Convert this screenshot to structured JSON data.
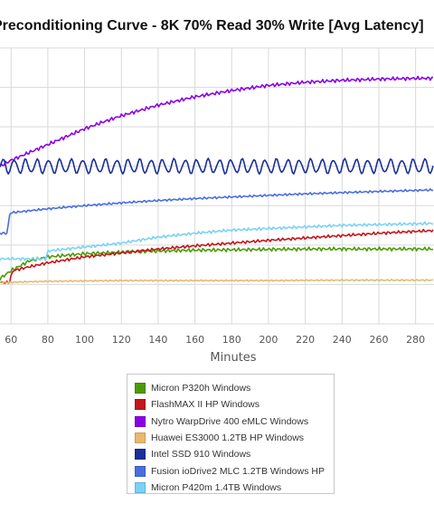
{
  "chart_data": {
    "type": "line",
    "title": "Preconditioning Curve - 8K 70% Read 30% Write [Avg Latency]",
    "xlabel": "Minutes",
    "x_ticks": [
      60,
      80,
      100,
      120,
      140,
      160,
      180,
      200,
      220,
      240,
      260,
      280
    ],
    "xlim": [
      54,
      290
    ],
    "ylim": [
      0,
      7
    ],
    "grid": true,
    "legend_position": "bottom",
    "series": [
      {
        "name": "Micron P320h Windows",
        "color": "#4e9a06",
        "points": [
          [
            54,
            1.15
          ],
          [
            60,
            1.35
          ],
          [
            70,
            1.6
          ],
          [
            80,
            1.7
          ],
          [
            100,
            1.78
          ],
          [
            120,
            1.82
          ],
          [
            140,
            1.85
          ],
          [
            160,
            1.87
          ],
          [
            180,
            1.88
          ],
          [
            200,
            1.89
          ],
          [
            220,
            1.9
          ],
          [
            240,
            1.9
          ],
          [
            260,
            1.9
          ],
          [
            290,
            1.9
          ]
        ]
      },
      {
        "name": "FlashMAX II HP Windows",
        "color": "#c4161c",
        "points": [
          [
            54,
            1.05
          ],
          [
            59,
            1.05
          ],
          [
            61,
            1.35
          ],
          [
            70,
            1.45
          ],
          [
            80,
            1.55
          ],
          [
            100,
            1.7
          ],
          [
            120,
            1.8
          ],
          [
            140,
            1.9
          ],
          [
            160,
            1.98
          ],
          [
            180,
            2.05
          ],
          [
            200,
            2.12
          ],
          [
            220,
            2.18
          ],
          [
            240,
            2.24
          ],
          [
            260,
            2.3
          ],
          [
            290,
            2.37
          ]
        ]
      },
      {
        "name": "Nytro WarpDrive 400 eMLC Windows",
        "color": "#8a00e6",
        "points": [
          [
            54,
            4.0
          ],
          [
            60,
            4.15
          ],
          [
            70,
            4.35
          ],
          [
            80,
            4.55
          ],
          [
            90,
            4.75
          ],
          [
            100,
            4.95
          ],
          [
            110,
            5.12
          ],
          [
            120,
            5.28
          ],
          [
            140,
            5.55
          ],
          [
            160,
            5.76
          ],
          [
            180,
            5.92
          ],
          [
            200,
            6.05
          ],
          [
            220,
            6.13
          ],
          [
            240,
            6.18
          ],
          [
            260,
            6.21
          ],
          [
            280,
            6.23
          ],
          [
            290,
            6.23
          ]
        ]
      },
      {
        "name": "Huawei ES3000 1.2TB HP Windows",
        "color": "#e8b870",
        "points": [
          [
            54,
            1.05
          ],
          [
            80,
            1.08
          ],
          [
            120,
            1.1
          ],
          [
            160,
            1.1
          ],
          [
            200,
            1.1
          ],
          [
            240,
            1.11
          ],
          [
            290,
            1.11
          ]
        ]
      },
      {
        "name": "Intel SSD 910 Windows",
        "color": "#1a2f99",
        "points": [
          [
            54,
            4.0
          ],
          [
            290,
            4.0
          ]
        ]
      },
      {
        "name": "Fusion ioDrive2 MLC 1.2TB Windows HP",
        "color": "#4a6ee0",
        "points": [
          [
            54,
            2.3
          ],
          [
            58,
            2.3
          ],
          [
            59,
            2.75
          ],
          [
            60,
            2.82
          ],
          [
            80,
            2.92
          ],
          [
            100,
            3.0
          ],
          [
            120,
            3.07
          ],
          [
            140,
            3.13
          ],
          [
            160,
            3.18
          ],
          [
            180,
            3.22
          ],
          [
            200,
            3.26
          ],
          [
            220,
            3.3
          ],
          [
            240,
            3.33
          ],
          [
            260,
            3.36
          ],
          [
            290,
            3.4
          ]
        ]
      },
      {
        "name": "Micron P420m 1.4TB Windows",
        "color": "#79d3f5",
        "points": [
          [
            54,
            1.65
          ],
          [
            79,
            1.65
          ],
          [
            80,
            1.85
          ],
          [
            100,
            1.95
          ],
          [
            120,
            2.05
          ],
          [
            140,
            2.2
          ],
          [
            160,
            2.3
          ],
          [
            180,
            2.38
          ],
          [
            200,
            2.42
          ],
          [
            220,
            2.46
          ],
          [
            240,
            2.5
          ],
          [
            260,
            2.52
          ],
          [
            290,
            2.55
          ]
        ]
      }
    ]
  }
}
